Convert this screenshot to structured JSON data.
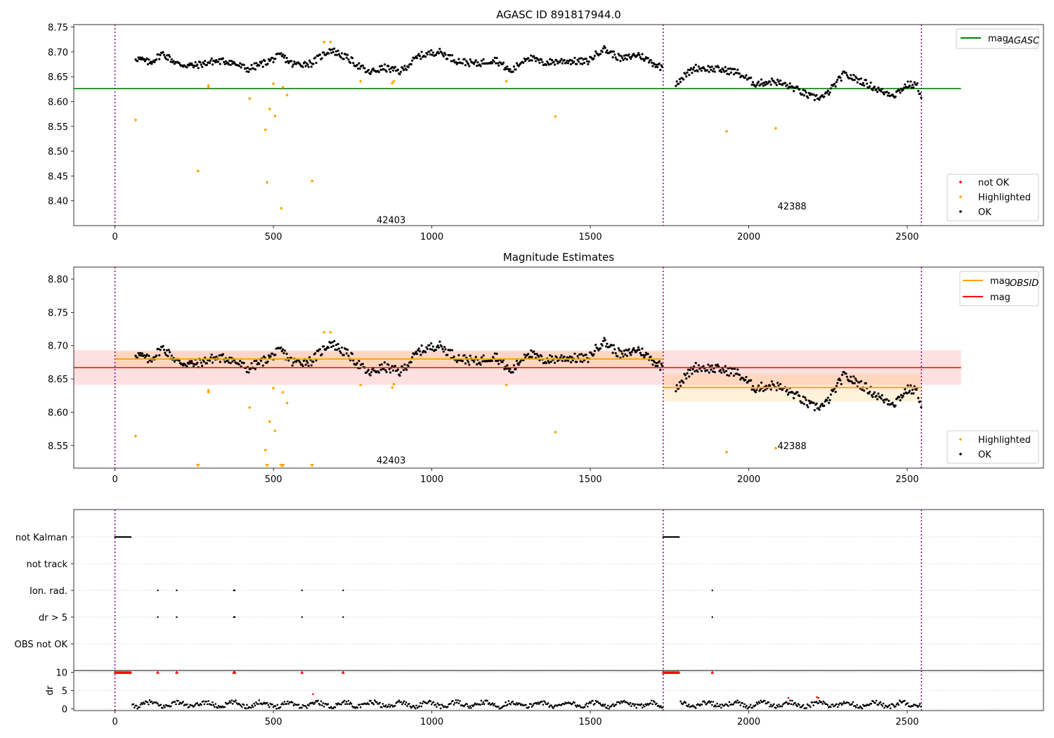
{
  "chart_data": [
    {
      "type": "scatter",
      "title": "AGASC ID 891817944.0",
      "xlim": [
        -130,
        2930
      ],
      "ylim": [
        8.35,
        8.755
      ],
      "xticks": [
        0,
        500,
        1000,
        1500,
        2000,
        2500
      ],
      "yticks": [
        8.4,
        8.45,
        8.5,
        8.55,
        8.6,
        8.65,
        8.7,
        8.75
      ],
      "ytick_labels": [
        "8.40",
        "8.45",
        "8.50",
        "8.55",
        "8.60",
        "8.65",
        "8.70",
        "8.75"
      ],
      "obs_boundaries": [
        0,
        1730,
        2545
      ],
      "obs_labels": [
        {
          "text": "42403",
          "x": 870,
          "y": 8.362
        },
        {
          "text": "42388",
          "x": 2135,
          "y": 8.39
        }
      ],
      "hlines": [
        {
          "name": "mag_AGASC",
          "value": 8.626,
          "color": "#008000",
          "xmax": 2670
        }
      ],
      "legend_lines": [
        {
          "main": "mag",
          "sub": "AGASC",
          "color": "#008000"
        }
      ],
      "legend_markers": [
        {
          "label": "not OK",
          "color": "#ff0000"
        },
        {
          "label": "Highlighted",
          "color": "#ffa500"
        },
        {
          "label": "OK",
          "color": "#000000"
        }
      ],
      "highlighted_points": [
        [
          65,
          8.563
        ],
        [
          262,
          8.46
        ],
        [
          295,
          8.632
        ],
        [
          295,
          8.629
        ],
        [
          425,
          8.606
        ],
        [
          475,
          8.543
        ],
        [
          480,
          8.437
        ],
        [
          488,
          8.585
        ],
        [
          500,
          8.636
        ],
        [
          505,
          8.571
        ],
        [
          525,
          8.385
        ],
        [
          530,
          8.629
        ],
        [
          543,
          8.613
        ],
        [
          622,
          8.44
        ],
        [
          660,
          8.72
        ],
        [
          680,
          8.72
        ],
        [
          775,
          8.641
        ],
        [
          875,
          8.637
        ],
        [
          880,
          8.641
        ],
        [
          1235,
          8.641
        ],
        [
          1390,
          8.57
        ],
        [
          1930,
          8.54
        ],
        [
          2085,
          8.546
        ]
      ],
      "ok_trend": [
        [
          65,
          8.688
        ],
        [
          110,
          8.678
        ],
        [
          150,
          8.697
        ],
        [
          200,
          8.675
        ],
        [
          250,
          8.672
        ],
        [
          310,
          8.681
        ],
        [
          360,
          8.681
        ],
        [
          420,
          8.665
        ],
        [
          480,
          8.68
        ],
        [
          525,
          8.693
        ],
        [
          560,
          8.675
        ],
        [
          620,
          8.677
        ],
        [
          680,
          8.705
        ],
        [
          740,
          8.685
        ],
        [
          800,
          8.658
        ],
        [
          850,
          8.668
        ],
        [
          900,
          8.66
        ],
        [
          960,
          8.692
        ],
        [
          1020,
          8.701
        ],
        [
          1080,
          8.682
        ],
        [
          1140,
          8.676
        ],
        [
          1200,
          8.685
        ],
        [
          1250,
          8.66
        ],
        [
          1300,
          8.69
        ],
        [
          1350,
          8.678
        ],
        [
          1420,
          8.682
        ],
        [
          1490,
          8.68
        ],
        [
          1540,
          8.707
        ],
        [
          1600,
          8.685
        ],
        [
          1650,
          8.695
        ],
        [
          1700,
          8.677
        ],
        [
          1728,
          8.668
        ]
      ],
      "ok_trend2": [
        [
          1770,
          8.638
        ],
        [
          1830,
          8.668
        ],
        [
          1900,
          8.665
        ],
        [
          1960,
          8.66
        ],
        [
          2020,
          8.636
        ],
        [
          2080,
          8.641
        ],
        [
          2140,
          8.628
        ],
        [
          2200,
          8.608
        ],
        [
          2240,
          8.61
        ],
        [
          2300,
          8.655
        ],
        [
          2360,
          8.64
        ],
        [
          2420,
          8.62
        ],
        [
          2460,
          8.614
        ],
        [
          2500,
          8.634
        ],
        [
          2530,
          8.633
        ],
        [
          2545,
          8.612
        ]
      ],
      "ok_noise": 0.007
    },
    {
      "type": "scatter",
      "title": "Magnitude Estimates",
      "xlim": [
        -130,
        2930
      ],
      "ylim": [
        8.516,
        8.818
      ],
      "xticks": [
        0,
        500,
        1000,
        1500,
        2000,
        2500
      ],
      "yticks": [
        8.55,
        8.6,
        8.65,
        8.7,
        8.75,
        8.8
      ],
      "ytick_labels": [
        "8.55",
        "8.60",
        "8.65",
        "8.70",
        "8.75",
        "8.80"
      ],
      "obs_boundaries": [
        0,
        1730,
        2545
      ],
      "obs_labels": [
        {
          "text": "42403",
          "x": 870,
          "y": 8.528
        },
        {
          "text": "42388",
          "x": 2135,
          "y": 8.55
        }
      ],
      "mag_line": {
        "value": 8.667,
        "band": [
          8.641,
          8.693
        ],
        "xmax": 2670,
        "color": "#ff0000"
      },
      "obsid_segments": [
        {
          "x0": 0,
          "x1": 1730,
          "value": 8.68,
          "band": [
            8.669,
            8.691
          ]
        },
        {
          "x0": 1730,
          "x1": 2545,
          "value": 8.637,
          "band": [
            8.616,
            8.658
          ]
        }
      ],
      "legend_lines": [
        {
          "main": "mag",
          "sub": "OBSID",
          "color": "#ffa500"
        },
        {
          "main": "mag",
          "sub": "",
          "color": "#ff0000"
        }
      ],
      "legend_markers": [
        {
          "label": "Highlighted",
          "color": "#ffa500"
        },
        {
          "label": "OK",
          "color": "#000000"
        }
      ],
      "highlighted_points": [
        [
          65,
          8.564
        ],
        [
          295,
          8.633
        ],
        [
          295,
          8.63
        ],
        [
          425,
          8.607
        ],
        [
          475,
          8.543
        ],
        [
          488,
          8.586
        ],
        [
          500,
          8.636
        ],
        [
          505,
          8.572
        ],
        [
          530,
          8.63
        ],
        [
          543,
          8.614
        ],
        [
          660,
          8.72
        ],
        [
          680,
          8.72
        ],
        [
          775,
          8.641
        ],
        [
          875,
          8.637
        ],
        [
          880,
          8.642
        ],
        [
          1235,
          8.641
        ],
        [
          1390,
          8.57
        ],
        [
          1930,
          8.54
        ],
        [
          2085,
          8.546
        ]
      ],
      "offscale_points": [
        262,
        480,
        525,
        530,
        622
      ]
    },
    {
      "type": "scatter",
      "title": "",
      "xlim": [
        -130,
        2930
      ],
      "xticks": [
        0,
        500,
        1000,
        1500,
        2000,
        2500
      ],
      "obs_boundaries": [
        0,
        1730,
        2545
      ],
      "flag_rows": [
        "not Kalman",
        "not track",
        "Ion. rad.",
        "dr > 5",
        "OBS not OK"
      ],
      "flag_ranges": [
        {
          "row": "not Kalman",
          "x0": 0,
          "x1": 52
        },
        {
          "row": "not Kalman",
          "x0": 1730,
          "x1": 1782
        }
      ],
      "flag_points": [
        {
          "row": "Ion. rad.",
          "x": [
            135,
            195,
            375,
            378,
            590,
            720,
            1885
          ]
        },
        {
          "row": "dr > 5",
          "x": [
            135,
            195,
            375,
            378,
            590,
            720,
            1885
          ]
        }
      ],
      "dr_ylabel": "dr",
      "dr_ylim": [
        -0.5,
        10.5
      ],
      "dr_yticks": [
        0,
        5,
        10
      ],
      "dr_clipped_x": [
        0,
        52,
        1730,
        1782
      ],
      "dr_clipped_points": [
        135,
        195,
        375,
        378,
        590,
        720,
        1885
      ],
      "dr_red_points": [
        [
          625,
          4.0
        ],
        [
          2125,
          3.0
        ],
        [
          2215,
          3.2
        ],
        [
          2220,
          3.0
        ]
      ]
    }
  ]
}
